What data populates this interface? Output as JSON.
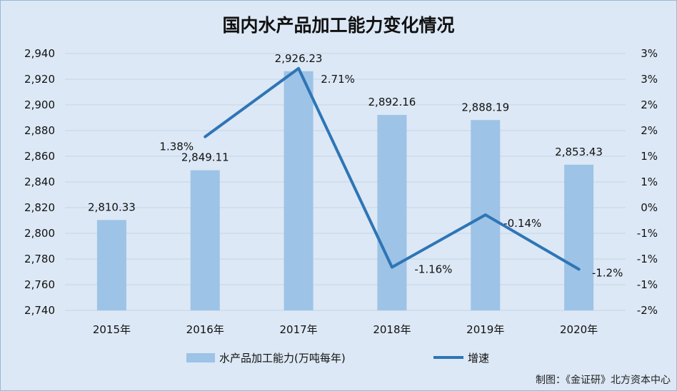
{
  "chart_data": {
    "type": "bar",
    "title": "国内水产品加工能力变化情况",
    "categories": [
      "2015年",
      "2016年",
      "2017年",
      "2018年",
      "2019年",
      "2020年"
    ],
    "series": [
      {
        "name": "水产品加工能力(万吨每年)",
        "type": "bar",
        "axis": "left",
        "values": [
          2810.33,
          2849.11,
          2926.23,
          2892.16,
          2888.19,
          2853.43
        ],
        "labels": [
          "2,810.33",
          "2,849.11",
          "2,926.23",
          "2,892.16",
          "2,888.19",
          "2,853.43"
        ],
        "color": "#9dc3e6"
      },
      {
        "name": "增速",
        "type": "line",
        "axis": "right",
        "values": [
          null,
          1.38,
          2.71,
          -1.16,
          -0.14,
          -1.2
        ],
        "labels": [
          "",
          "1.38%",
          "2.71%",
          "-1.16%",
          "-0.14%",
          "-1.2%"
        ],
        "color": "#2e75b6"
      }
    ],
    "y_left": {
      "range": [
        2740,
        2940
      ],
      "ticks": [
        2740,
        2760,
        2780,
        2800,
        2820,
        2840,
        2860,
        2880,
        2900,
        2920,
        2940
      ],
      "tick_labels": [
        "2,740",
        "2,760",
        "2,780",
        "2,800",
        "2,820",
        "2,840",
        "2,860",
        "2,880",
        "2,900",
        "2,920",
        "2,940"
      ]
    },
    "y_right": {
      "range": [
        -2,
        3
      ],
      "ticks": [
        -2,
        -1.5,
        -1,
        -0.5,
        0,
        0.5,
        1,
        1.5,
        2,
        2.5,
        3
      ],
      "tick_labels": [
        "-2%",
        "-1%",
        "-1%",
        "-1%",
        "0%",
        "1%",
        "1%",
        "2%",
        "2%",
        "3%",
        "3%"
      ]
    },
    "grid": true,
    "legend": "bottom",
    "credit": "制图：《金证研》北方资本中心"
  }
}
